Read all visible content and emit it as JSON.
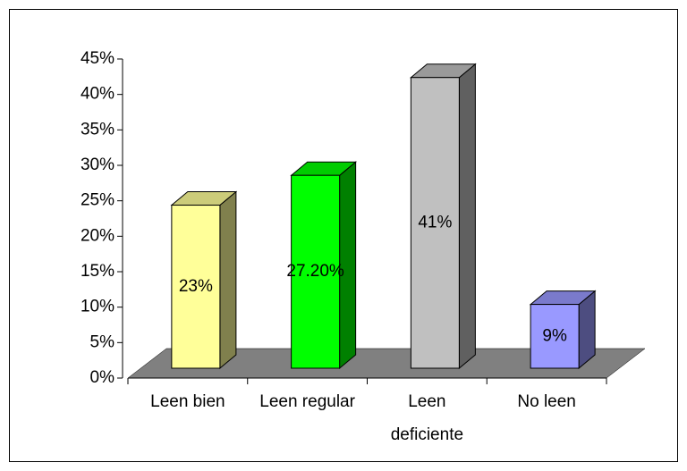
{
  "chart_data": {
    "type": "bar3d",
    "categories": [
      "Leen bien",
      "Leen regular",
      "Leen deficiente",
      "No leen"
    ],
    "values": [
      23,
      27.2,
      41,
      9
    ],
    "value_labels": [
      "23%",
      "27.20%",
      "41%",
      "9%"
    ],
    "colors": [
      "#ffff99",
      "#00ff00",
      "#c0c0c0",
      "#9999ff"
    ],
    "ylim": [
      0,
      45
    ],
    "yticks": [
      {
        "value": 0,
        "label": "0%"
      },
      {
        "value": 5,
        "label": "5%"
      },
      {
        "value": 10,
        "label": "10%"
      },
      {
        "value": 15,
        "label": "15%"
      },
      {
        "value": 20,
        "label": "20%"
      },
      {
        "value": 25,
        "label": "25%"
      },
      {
        "value": 30,
        "label": "30%"
      },
      {
        "value": 35,
        "label": "35%"
      },
      {
        "value": 40,
        "label": "40%"
      },
      {
        "value": 45,
        "label": "45%"
      }
    ]
  }
}
